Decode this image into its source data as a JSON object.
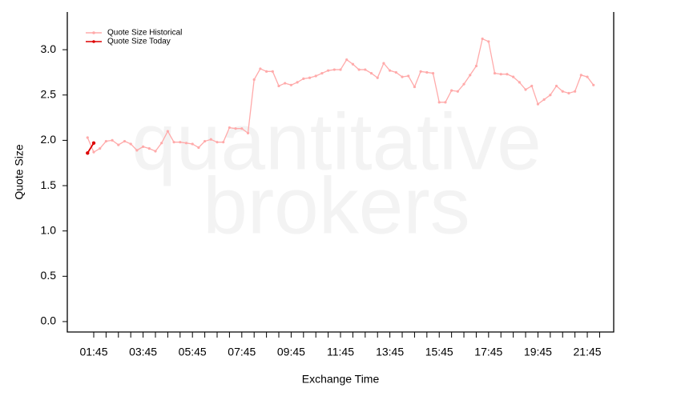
{
  "chart_data": {
    "type": "line",
    "watermark": [
      "quantitative",
      "brokers"
    ],
    "xlabel": "Exchange Time",
    "ylabel": "Quote Size",
    "legend": "top-left",
    "xlim": [
      0.679,
      22.82
    ],
    "ylim": [
      -0.115,
      3.416
    ],
    "xticks": [
      {
        "value": 1.75,
        "label": "01:45"
      },
      {
        "value": 3.75,
        "label": "03:45"
      },
      {
        "value": 5.75,
        "label": "05:45"
      },
      {
        "value": 7.75,
        "label": "07:45"
      },
      {
        "value": 9.75,
        "label": "09:45"
      },
      {
        "value": 11.75,
        "label": "11:45"
      },
      {
        "value": 13.75,
        "label": "13:45"
      },
      {
        "value": 15.75,
        "label": "15:45"
      },
      {
        "value": 17.75,
        "label": "17:45"
      },
      {
        "value": 19.75,
        "label": "19:45"
      },
      {
        "value": 21.75,
        "label": "21:45"
      }
    ],
    "xminorticks": [
      2.25,
      2.75,
      3.25,
      4.25,
      4.75,
      5.25,
      6.25,
      6.75,
      7.25,
      8.25,
      8.75,
      9.25,
      10.25,
      10.75,
      11.25,
      12.25,
      12.75,
      13.25,
      14.25,
      14.75,
      15.25,
      16.25,
      16.75,
      17.25,
      18.25,
      18.75,
      19.25,
      20.25,
      20.75,
      21.25,
      22.25
    ],
    "yticks": [
      {
        "value": 0,
        "label": "0.0"
      },
      0.5,
      {
        "value": 1,
        "label": "1.0"
      },
      1.5,
      {
        "value": 2,
        "label": "2.0"
      },
      2.5,
      {
        "value": 3,
        "label": "3.0"
      }
    ],
    "series": [
      {
        "name": "Quote Size Historical",
        "color": "#ffaaaa",
        "x": [
          1.5,
          1.75,
          2,
          2.25,
          2.5,
          2.75,
          3,
          3.25,
          3.5,
          3.75,
          4,
          4.25,
          4.5,
          4.75,
          5,
          5.25,
          5.5,
          5.75,
          6,
          6.25,
          6.5,
          6.75,
          7,
          7.25,
          7.5,
          7.75,
          8,
          8.25,
          8.5,
          8.75,
          9,
          9.25,
          9.5,
          9.75,
          10,
          10.25,
          10.5,
          10.75,
          11,
          11.25,
          11.5,
          11.75,
          12,
          12.25,
          12.5,
          12.75,
          13,
          13.25,
          13.5,
          13.75,
          14,
          14.25,
          14.5,
          14.75,
          15,
          15.25,
          15.5,
          15.75,
          16,
          16.25,
          16.5,
          16.75,
          17,
          17.25,
          17.5,
          17.75,
          18,
          18.25,
          18.5,
          18.75,
          19,
          19.25,
          19.5,
          19.75,
          20,
          20.25,
          20.5,
          20.75,
          21,
          21.25,
          21.5,
          21.75,
          22
        ],
        "values": [
          2.03,
          1.87,
          1.91,
          1.99,
          2.0,
          1.95,
          1.99,
          1.96,
          1.89,
          1.93,
          1.91,
          1.88,
          1.97,
          2.1,
          1.98,
          1.98,
          1.97,
          1.96,
          1.92,
          1.99,
          2.01,
          1.98,
          1.98,
          2.14,
          2.13,
          2.13,
          2.08,
          2.67,
          2.79,
          2.76,
          2.76,
          2.6,
          2.63,
          2.61,
          2.64,
          2.68,
          2.69,
          2.71,
          2.74,
          2.77,
          2.78,
          2.78,
          2.89,
          2.84,
          2.78,
          2.78,
          2.74,
          2.69,
          2.85,
          2.77,
          2.75,
          2.7,
          2.71,
          2.59,
          2.76,
          2.75,
          2.74,
          2.42,
          2.42,
          2.55,
          2.54,
          2.62,
          2.72,
          2.82,
          3.12,
          3.09,
          2.74,
          2.73,
          2.73,
          2.7,
          2.64,
          2.56,
          2.6,
          2.4,
          2.45,
          2.5,
          2.6,
          2.54,
          2.52,
          2.54,
          2.72,
          2.7,
          2.61
        ]
      },
      {
        "name": "Quote Size Today",
        "color": "#dd0000",
        "x": [
          1.5,
          1.75
        ],
        "values": [
          1.86,
          1.97
        ]
      }
    ]
  }
}
